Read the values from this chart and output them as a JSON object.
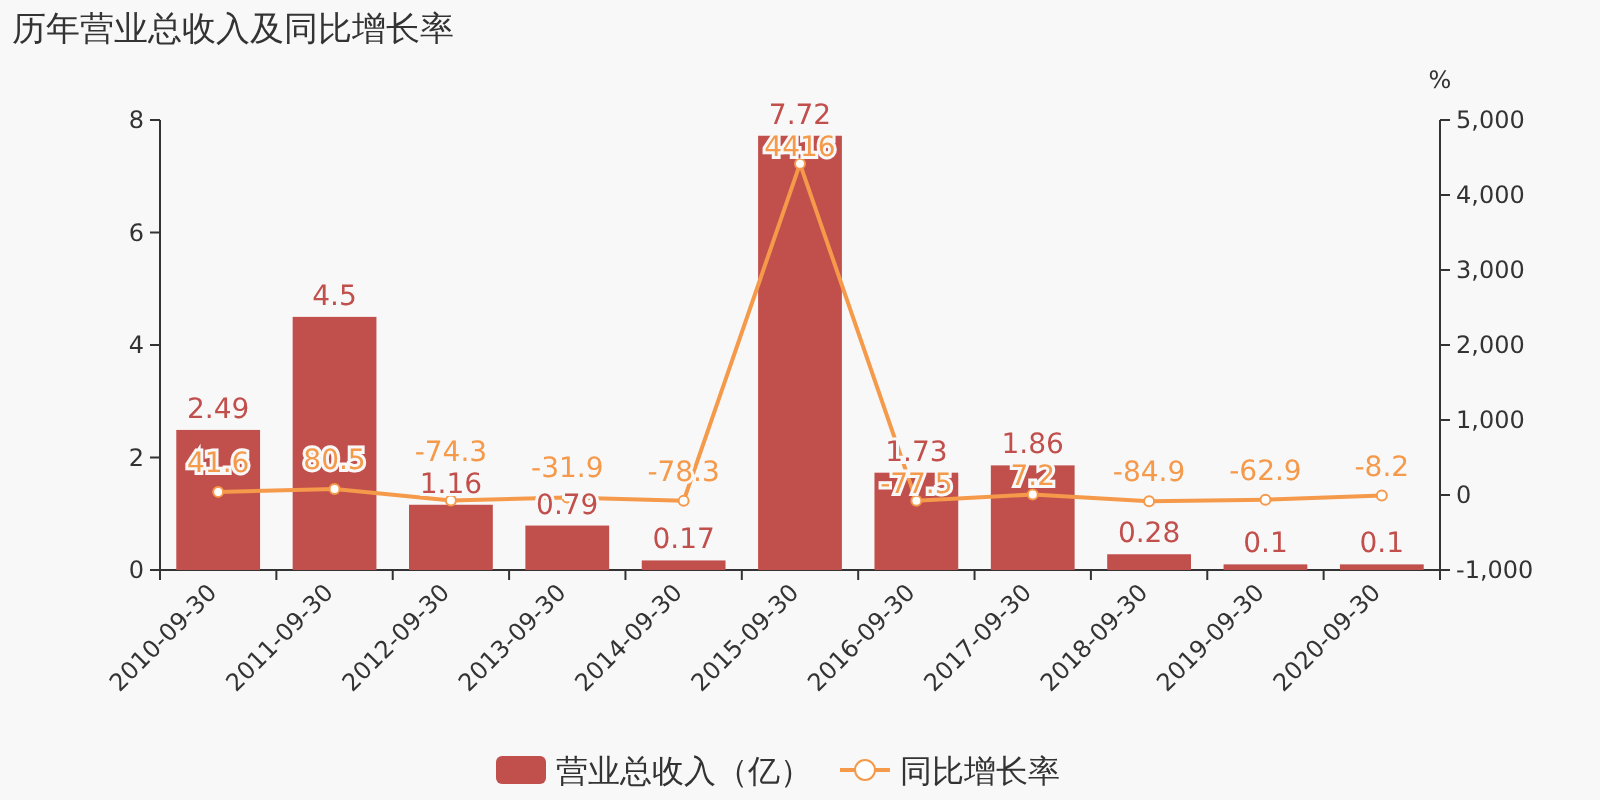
{
  "chart_data": {
    "type": "bar",
    "title": "历年营业总收入及同比增长率",
    "categories": [
      "2010-09-30",
      "2011-09-30",
      "2012-09-30",
      "2013-09-30",
      "2014-09-30",
      "2015-09-30",
      "2016-09-30",
      "2017-09-30",
      "2018-09-30",
      "2019-09-30",
      "2020-09-30"
    ],
    "series": [
      {
        "name": "营业总收入（亿）",
        "color": "#c14f4c",
        "values": [
          2.49,
          4.5,
          1.16,
          0.79,
          0.17,
          7.72,
          1.73,
          1.86,
          0.28,
          0.1,
          0.1
        ]
      },
      {
        "name": "同比增长率",
        "type": "line",
        "axis": "y2",
        "color": "#f5994a",
        "marker": "circle",
        "values": [
          41.6,
          80.5,
          -74.3,
          -31.9,
          -78.3,
          4416,
          -77.5,
          7.2,
          -84.9,
          -62.9,
          -8.2
        ]
      }
    ],
    "ylim": [
      0,
      8
    ],
    "yticks": [
      0,
      2,
      4,
      6,
      8
    ],
    "y2lim": [
      -1000,
      5000
    ],
    "y2ticks": [
      {
        "value": -1000,
        "label": "-1,000"
      },
      0,
      {
        "value": 1000,
        "label": "1,000"
      },
      {
        "value": 2000,
        "label": "2,000"
      },
      {
        "value": 3000,
        "label": "3,000"
      },
      {
        "value": 4000,
        "label": "4,000"
      },
      {
        "value": 5000,
        "label": "5,000"
      }
    ],
    "y2label": "%",
    "data_labels": true,
    "grid": false,
    "legend": "bottom"
  }
}
